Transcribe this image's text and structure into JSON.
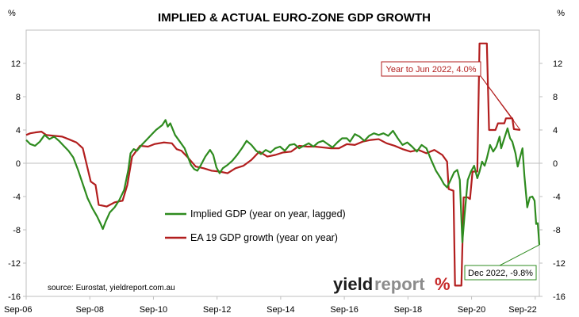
{
  "chart_data": {
    "type": "line",
    "title": "IMPLIED & ACTUAL EURO-ZONE GDP GROWTH",
    "ylabel_left": "%",
    "ylabel_right": "%",
    "ylim": [
      -16,
      16
    ],
    "y_ticks": [
      "-16",
      "-12",
      "-8",
      "-4",
      "0",
      "4",
      "8",
      "12"
    ],
    "x_ticks": [
      "Sep-06",
      "Sep-08",
      "Sep-10",
      "Sep-12",
      "Sep-14",
      "Sep-16",
      "Sep-18",
      "Sep-20",
      "Sep-22"
    ],
    "x_tick_values": [
      2006.67,
      2008.67,
      2010.67,
      2012.67,
      2014.67,
      2016.67,
      2018.67,
      2020.67,
      2022.67
    ],
    "xlim": [
      2006.67,
      2022.8
    ],
    "grid": false,
    "legend_position": "center",
    "series": [
      {
        "name": "Implied GDP (year on year, lagged)",
        "color": "#2e8b1f",
        "points": [
          [
            2006.67,
            2.8
          ],
          [
            2006.8,
            2.3
          ],
          [
            2006.95,
            2.1
          ],
          [
            2007.1,
            2.6
          ],
          [
            2007.25,
            3.4
          ],
          [
            2007.4,
            2.9
          ],
          [
            2007.55,
            3.2
          ],
          [
            2007.7,
            2.7
          ],
          [
            2007.85,
            2.1
          ],
          [
            2008.0,
            1.5
          ],
          [
            2008.15,
            0.7
          ],
          [
            2008.3,
            -0.8
          ],
          [
            2008.45,
            -2.5
          ],
          [
            2008.6,
            -4.2
          ],
          [
            2008.75,
            -5.4
          ],
          [
            2008.9,
            -6.4
          ],
          [
            2009.0,
            -7.2
          ],
          [
            2009.08,
            -7.9
          ],
          [
            2009.17,
            -7.0
          ],
          [
            2009.3,
            -5.9
          ],
          [
            2009.45,
            -5.3
          ],
          [
            2009.6,
            -4.4
          ],
          [
            2009.75,
            -3.2
          ],
          [
            2009.88,
            -0.8
          ],
          [
            2009.95,
            1.2
          ],
          [
            2010.05,
            1.7
          ],
          [
            2010.15,
            1.5
          ],
          [
            2010.3,
            2.2
          ],
          [
            2010.45,
            2.8
          ],
          [
            2010.6,
            3.4
          ],
          [
            2010.75,
            4.0
          ],
          [
            2010.85,
            4.3
          ],
          [
            2010.95,
            4.6
          ],
          [
            2011.05,
            5.2
          ],
          [
            2011.12,
            4.4
          ],
          [
            2011.2,
            4.8
          ],
          [
            2011.35,
            3.4
          ],
          [
            2011.5,
            2.6
          ],
          [
            2011.65,
            1.8
          ],
          [
            2011.75,
            0.8
          ],
          [
            2011.85,
            -0.2
          ],
          [
            2011.95,
            -0.7
          ],
          [
            2012.05,
            -0.9
          ],
          [
            2012.15,
            -0.3
          ],
          [
            2012.3,
            0.8
          ],
          [
            2012.45,
            1.6
          ],
          [
            2012.55,
            1.0
          ],
          [
            2012.65,
            -0.5
          ],
          [
            2012.75,
            -1.2
          ],
          [
            2012.85,
            -0.6
          ],
          [
            2013.0,
            -0.2
          ],
          [
            2013.15,
            0.3
          ],
          [
            2013.3,
            1.0
          ],
          [
            2013.45,
            1.8
          ],
          [
            2013.6,
            2.7
          ],
          [
            2013.75,
            2.2
          ],
          [
            2013.9,
            1.5
          ],
          [
            2014.05,
            1.1
          ],
          [
            2014.2,
            1.6
          ],
          [
            2014.35,
            1.3
          ],
          [
            2014.5,
            1.8
          ],
          [
            2014.65,
            2.0
          ],
          [
            2014.8,
            1.5
          ],
          [
            2014.95,
            2.2
          ],
          [
            2015.1,
            2.3
          ],
          [
            2015.25,
            1.8
          ],
          [
            2015.4,
            2.1
          ],
          [
            2015.55,
            2.4
          ],
          [
            2015.7,
            2.0
          ],
          [
            2015.85,
            2.5
          ],
          [
            2016.0,
            2.7
          ],
          [
            2016.15,
            2.3
          ],
          [
            2016.3,
            1.9
          ],
          [
            2016.45,
            2.5
          ],
          [
            2016.6,
            3.0
          ],
          [
            2016.75,
            3.0
          ],
          [
            2016.85,
            2.6
          ],
          [
            2017.0,
            3.5
          ],
          [
            2017.15,
            3.2
          ],
          [
            2017.3,
            2.7
          ],
          [
            2017.45,
            3.3
          ],
          [
            2017.6,
            3.6
          ],
          [
            2017.75,
            3.4
          ],
          [
            2017.9,
            3.6
          ],
          [
            2018.05,
            3.3
          ],
          [
            2018.2,
            3.9
          ],
          [
            2018.35,
            3.0
          ],
          [
            2018.5,
            2.2
          ],
          [
            2018.65,
            2.5
          ],
          [
            2018.8,
            2.0
          ],
          [
            2018.95,
            1.4
          ],
          [
            2019.1,
            2.2
          ],
          [
            2019.25,
            1.8
          ],
          [
            2019.4,
            0.4
          ],
          [
            2019.55,
            -0.9
          ],
          [
            2019.7,
            -1.8
          ],
          [
            2019.8,
            -2.5
          ],
          [
            2019.9,
            -2.9
          ],
          [
            2020.0,
            -2.1
          ],
          [
            2020.12,
            -1.1
          ],
          [
            2020.22,
            -0.8
          ],
          [
            2020.3,
            -2.0
          ],
          [
            2020.38,
            -9.5
          ],
          [
            2020.45,
            -6.2
          ],
          [
            2020.55,
            -2.0
          ],
          [
            2020.65,
            -1.0
          ],
          [
            2020.75,
            -0.3
          ],
          [
            2020.85,
            -1.8
          ],
          [
            2020.92,
            -1.0
          ],
          [
            2021.0,
            0.2
          ],
          [
            2021.08,
            -0.3
          ],
          [
            2021.15,
            0.6
          ],
          [
            2021.25,
            2.2
          ],
          [
            2021.35,
            1.4
          ],
          [
            2021.45,
            2.0
          ],
          [
            2021.55,
            3.2
          ],
          [
            2021.6,
            1.8
          ],
          [
            2021.7,
            3.0
          ],
          [
            2021.8,
            4.2
          ],
          [
            2021.88,
            3.0
          ],
          [
            2021.95,
            2.6
          ],
          [
            2022.05,
            1.2
          ],
          [
            2022.12,
            -0.4
          ],
          [
            2022.2,
            0.8
          ],
          [
            2022.27,
            1.8
          ],
          [
            2022.33,
            -1.5
          ],
          [
            2022.42,
            -5.3
          ],
          [
            2022.5,
            -4.1
          ],
          [
            2022.58,
            -4.0
          ],
          [
            2022.65,
            -4.5
          ],
          [
            2022.7,
            -7.3
          ],
          [
            2022.75,
            -7.2
          ],
          [
            2022.8,
            -9.8
          ]
        ]
      },
      {
        "name": "EA 19 GDP growth (year on year)",
        "color": "#b21e1e",
        "points": [
          [
            2006.67,
            3.4
          ],
          [
            2006.8,
            3.6
          ],
          [
            2006.95,
            3.7
          ],
          [
            2007.15,
            3.8
          ],
          [
            2007.3,
            3.4
          ],
          [
            2007.55,
            3.3
          ],
          [
            2007.8,
            3.2
          ],
          [
            2008.0,
            2.9
          ],
          [
            2008.25,
            2.5
          ],
          [
            2008.45,
            1.8
          ],
          [
            2008.55,
            0.2
          ],
          [
            2008.7,
            -2.2
          ],
          [
            2008.85,
            -2.6
          ],
          [
            2008.95,
            -5.0
          ],
          [
            2009.2,
            -5.2
          ],
          [
            2009.45,
            -4.7
          ],
          [
            2009.7,
            -4.5
          ],
          [
            2009.85,
            -2.6
          ],
          [
            2010.0,
            0.8
          ],
          [
            2010.25,
            2.1
          ],
          [
            2010.5,
            2.0
          ],
          [
            2010.7,
            2.3
          ],
          [
            2011.0,
            2.5
          ],
          [
            2011.25,
            2.4
          ],
          [
            2011.4,
            1.7
          ],
          [
            2011.55,
            1.5
          ],
          [
            2011.75,
            0.7
          ],
          [
            2012.0,
            -0.4
          ],
          [
            2012.25,
            -0.6
          ],
          [
            2012.5,
            -0.9
          ],
          [
            2012.75,
            -1.0
          ],
          [
            2013.0,
            -1.2
          ],
          [
            2013.25,
            -0.6
          ],
          [
            2013.5,
            -0.3
          ],
          [
            2013.75,
            0.4
          ],
          [
            2014.0,
            1.4
          ],
          [
            2014.25,
            0.8
          ],
          [
            2014.5,
            1.0
          ],
          [
            2014.75,
            1.3
          ],
          [
            2015.0,
            1.4
          ],
          [
            2015.25,
            2.1
          ],
          [
            2015.5,
            2.0
          ],
          [
            2015.75,
            2.0
          ],
          [
            2016.0,
            1.9
          ],
          [
            2016.25,
            1.8
          ],
          [
            2016.5,
            1.8
          ],
          [
            2016.75,
            2.3
          ],
          [
            2017.0,
            2.2
          ],
          [
            2017.25,
            2.6
          ],
          [
            2017.5,
            2.8
          ],
          [
            2017.75,
            2.9
          ],
          [
            2018.0,
            2.4
          ],
          [
            2018.25,
            2.1
          ],
          [
            2018.5,
            1.7
          ],
          [
            2018.75,
            1.4
          ],
          [
            2019.0,
            1.6
          ],
          [
            2019.25,
            1.2
          ],
          [
            2019.5,
            1.6
          ],
          [
            2019.75,
            1.0
          ],
          [
            2019.9,
            0.2
          ],
          [
            2019.95,
            -3.1
          ],
          [
            2020.1,
            -3.3
          ],
          [
            2020.15,
            -14.7
          ],
          [
            2020.35,
            -14.7
          ],
          [
            2020.42,
            -4.1
          ],
          [
            2020.55,
            -4.1
          ],
          [
            2020.62,
            -4.3
          ],
          [
            2020.7,
            -1.0
          ],
          [
            2020.85,
            -1.0
          ],
          [
            2020.92,
            14.4
          ],
          [
            2021.15,
            14.4
          ],
          [
            2021.22,
            4.0
          ],
          [
            2021.42,
            4.0
          ],
          [
            2021.5,
            4.8
          ],
          [
            2021.7,
            4.8
          ],
          [
            2021.75,
            5.4
          ],
          [
            2021.95,
            5.4
          ],
          [
            2022.0,
            4.1
          ],
          [
            2022.2,
            4.0
          ]
        ]
      }
    ],
    "annotations": [
      {
        "text": "Year to Jun 2022, 4.0%",
        "x": 2022.2,
        "y": 4.0,
        "color": "#b21e1e"
      },
      {
        "text": "Dec 2022, -9.8%",
        "x": 2022.8,
        "y": -9.8,
        "color": "#2e8b1f"
      }
    ],
    "source": "source: Eurostat, yieldreport.com.au"
  },
  "branding": {
    "logo_text_dark": "yield",
    "logo_text_light": "report",
    "logo_pct": "%"
  }
}
